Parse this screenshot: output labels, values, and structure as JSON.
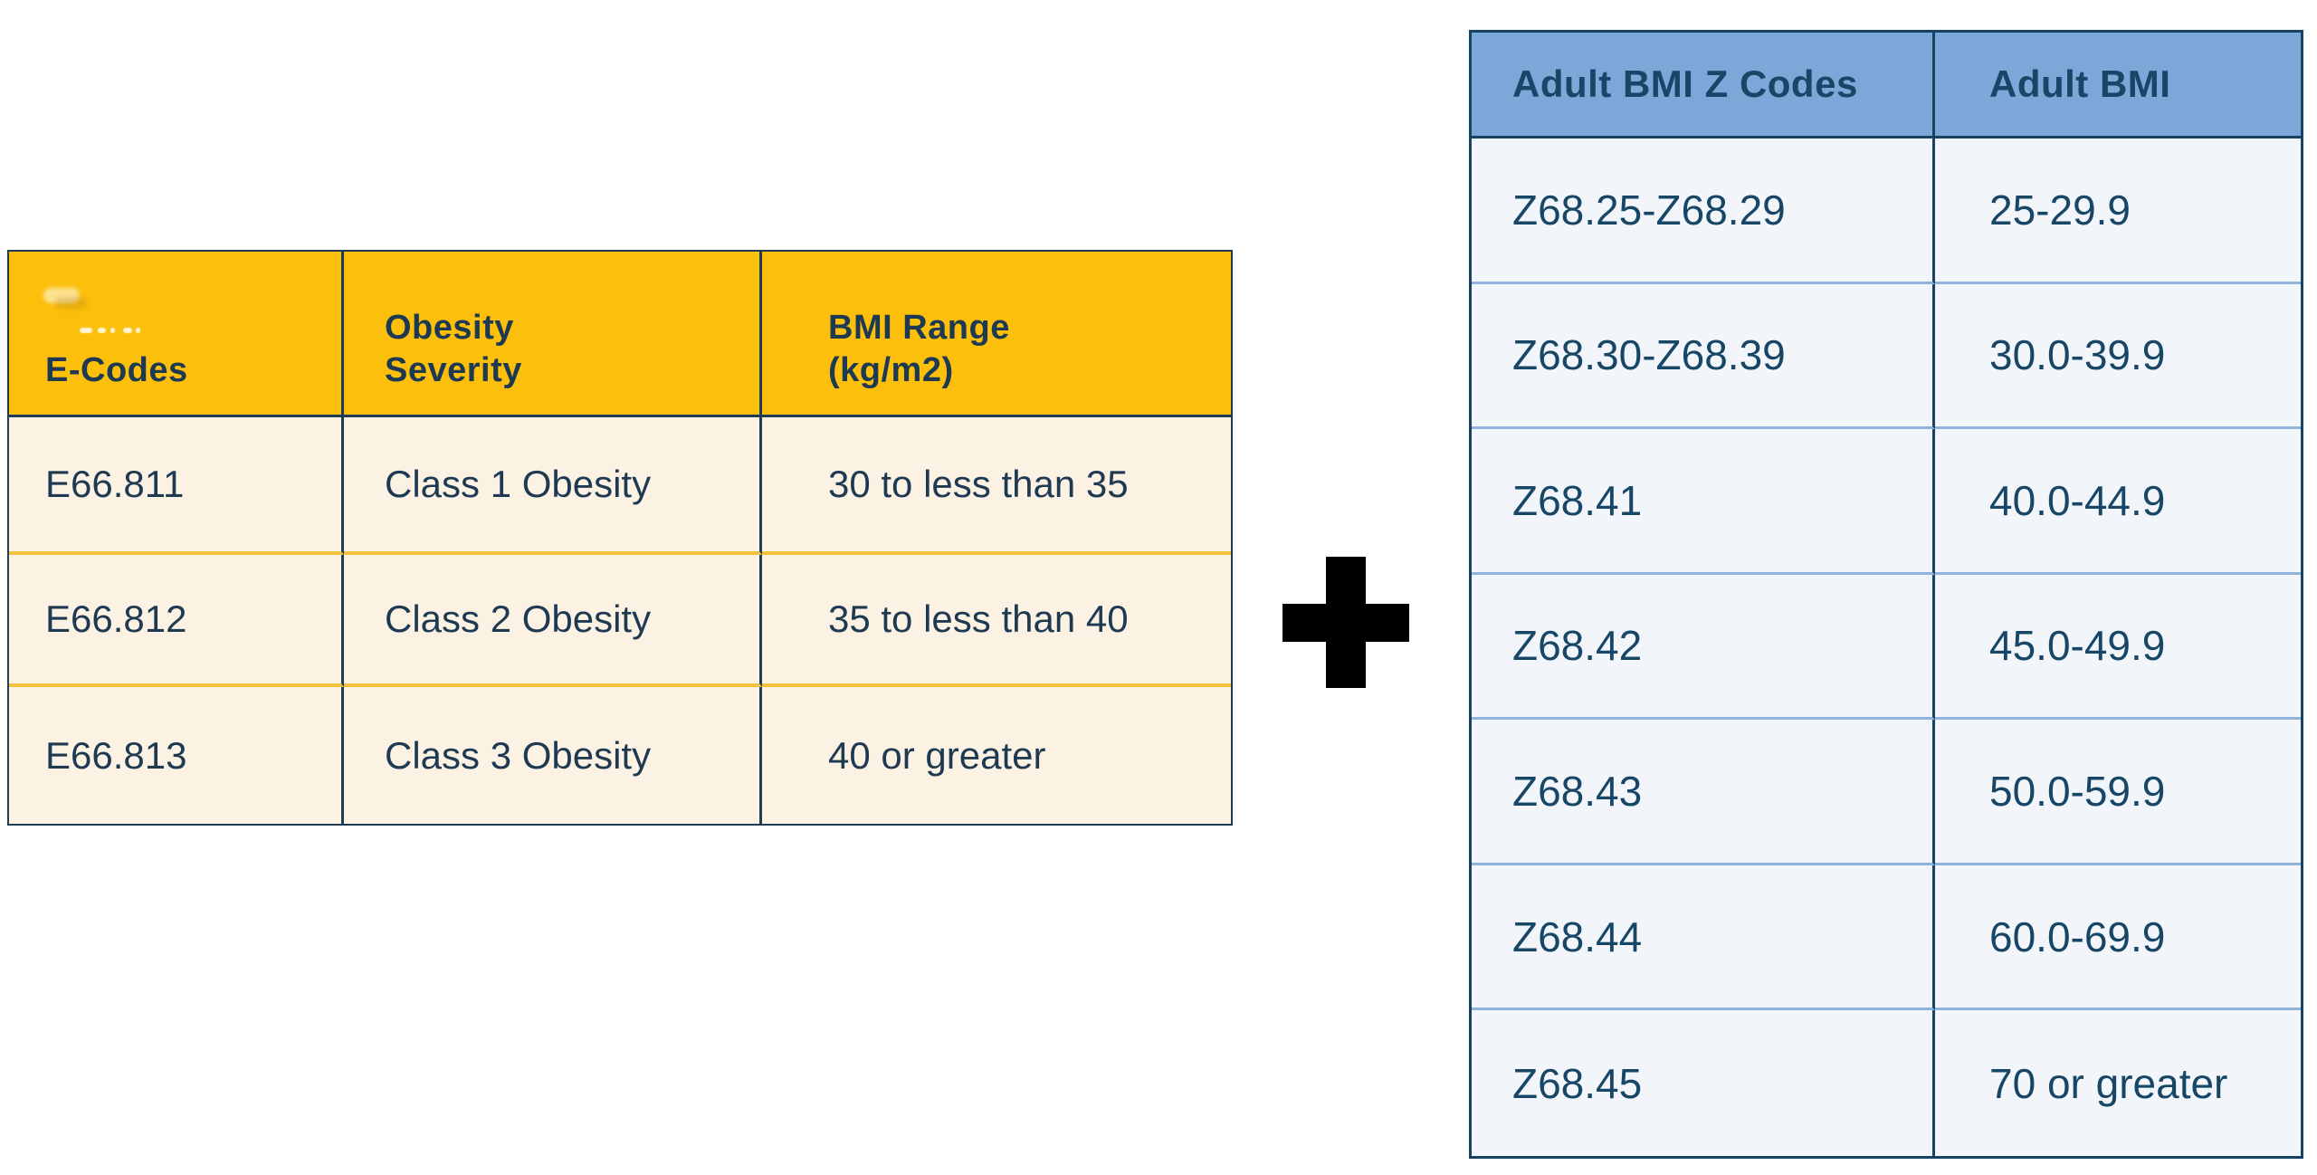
{
  "theme": {
    "page_bg": "#ffffff",
    "left_header_bg": "#fcbf0c",
    "left_body_bg": "#fcf2e4",
    "left_border": "#1c3d54",
    "left_separator": "#eec23a",
    "left_text": "#1e3a52",
    "right_header_bg": "#7da7d8",
    "right_body_bg": "#f2f6fa",
    "right_border": "#174262",
    "right_separator": "#8fb3dc",
    "right_text": "#174666",
    "plus_color": "#000000"
  },
  "icons": {
    "plus": "+"
  },
  "left_table": {
    "columns": [
      "E-Codes",
      "Obesity\nSeverity",
      "BMI Range\n(kg/m2)"
    ],
    "rows": [
      {
        "code": "E66.811",
        "severity": "Class 1 Obesity",
        "bmi_range": "30 to less than 35"
      },
      {
        "code": "E66.812",
        "severity": "Class 2 Obesity",
        "bmi_range": "35 to less than 40"
      },
      {
        "code": "E66.813",
        "severity": "Class 3 Obesity",
        "bmi_range": "40 or greater"
      }
    ]
  },
  "right_table": {
    "columns": [
      "Adult BMI Z Codes",
      "Adult BMI"
    ],
    "rows": [
      {
        "z_code": "Z68.25-Z68.29",
        "bmi": "25-29.9"
      },
      {
        "z_code": "Z68.30-Z68.39",
        "bmi": "30.0-39.9"
      },
      {
        "z_code": "Z68.41",
        "bmi": "40.0-44.9"
      },
      {
        "z_code": "Z68.42",
        "bmi": "45.0-49.9"
      },
      {
        "z_code": "Z68.43",
        "bmi": "50.0-59.9"
      },
      {
        "z_code": "Z68.44",
        "bmi": "60.0-69.9"
      },
      {
        "z_code": "Z68.45",
        "bmi": "70 or greater"
      }
    ]
  }
}
